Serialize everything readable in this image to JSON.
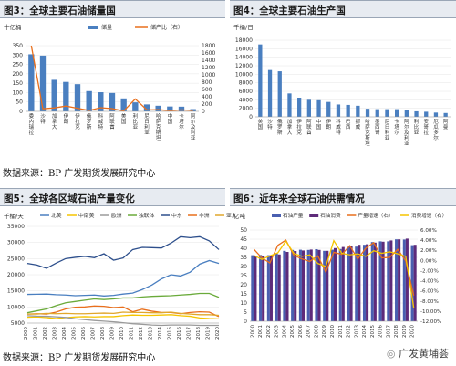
{
  "fig3": {
    "header": "图3：全球主要石油储量国",
    "unit": "十亿桶",
    "legend": [
      "储量",
      "储产比（右）"
    ],
    "chart_data": {
      "type": "bar",
      "title": "全球主要石油储量国",
      "categories": [
        "委内瑞拉",
        "沙特",
        "加拿大",
        "伊朗",
        "伊拉克",
        "俄罗斯",
        "科威特",
        "阿联酋",
        "美国",
        "利比亚",
        "尼日利亚",
        "哈萨克斯坦",
        "中国",
        "卡塔尔",
        "阿尔及利亚"
      ],
      "series": [
        {
          "name": "储量",
          "axis": "left",
          "values": [
            304,
            297,
            168,
            157,
            145,
            108,
            102,
            98,
            69,
            48,
            37,
            30,
            26,
            25,
            12
          ]
        },
        {
          "name": "储产比（右）",
          "axis": "right",
          "values": [
            1800,
            70,
            95,
            145,
            85,
            25,
            100,
            75,
            10,
            340,
            40,
            45,
            20,
            40,
            25
          ]
        }
      ],
      "ylim": [
        0,
        350
      ],
      "yticks": [
        0,
        50,
        100,
        150,
        200,
        250,
        300,
        350
      ],
      "y2lim": [
        0,
        1800
      ],
      "y2ticks": [
        0,
        200,
        400,
        600,
        800,
        1000,
        1200,
        1400,
        1600,
        1800
      ]
    }
  },
  "fig4": {
    "header": "图4：全球主要石油生产国",
    "unit": "千桶/日",
    "chart_data": {
      "type": "bar",
      "title": "全球主要石油生产国",
      "categories": [
        "美国",
        "沙特",
        "俄罗斯",
        "加拿大",
        "伊拉克",
        "阿联酋",
        "中国",
        "伊朗",
        "科威特",
        "巴西",
        "挪威",
        "哈萨克斯坦",
        "墨西哥",
        "尼日利亚",
        "卡塔尔",
        "阿尔及利亚",
        "利比亚",
        "安哥拉",
        "厄瓜多尔",
        "阿曼"
      ],
      "series": [
        {
          "name": "产量",
          "values": [
            17000,
            11000,
            10700,
            5500,
            4500,
            4000,
            3900,
            3500,
            2900,
            2800,
            2600,
            1900,
            1800,
            1800,
            1800,
            1500,
            1300,
            1200,
            1000,
            900
          ]
        }
      ],
      "ylim": [
        0,
        18000
      ],
      "yticks": [
        0,
        2000,
        4000,
        6000,
        8000,
        10000,
        12000,
        14000,
        16000,
        18000
      ]
    }
  },
  "fig5": {
    "header": "图5：全球各区域石油产量变化",
    "unit": "千桶/天",
    "chart_data": {
      "type": "line",
      "title": "全球各区域石油产量变化",
      "x": [
        "2000",
        "2001",
        "2002",
        "2003",
        "2004",
        "2005",
        "2006",
        "2007",
        "2008",
        "2009",
        "2010",
        "2011",
        "2012",
        "2013",
        "2014",
        "2015",
        "2016",
        "2017",
        "2018",
        "2019",
        "2020"
      ],
      "series": [
        {
          "name": "北美",
          "color": "#4a7fc0",
          "values": [
            13900,
            13950,
            14000,
            13800,
            13700,
            13500,
            13600,
            13700,
            13400,
            13600,
            14000,
            14300,
            15400,
            16800,
            18700,
            20000,
            19600,
            20800,
            23300,
            24400,
            23500
          ]
        },
        {
          "name": "中南美",
          "color": "#f5c400",
          "values": [
            6800,
            6900,
            6700,
            6400,
            6700,
            6900,
            7000,
            6900,
            7000,
            7000,
            7300,
            7500,
            7400,
            7400,
            7500,
            7600,
            7300,
            7100,
            6600,
            6400,
            6300
          ]
        },
        {
          "name": "欧洲",
          "color": "#9a9a9a",
          "values": [
            7300,
            7150,
            7100,
            6950,
            6750,
            6350,
            6050,
            5800,
            5600,
            5400,
            5100,
            4800,
            4600,
            4400,
            4300,
            4400,
            4400,
            4400,
            4300,
            4300,
            4300
          ]
        },
        {
          "name": "独联体",
          "color": "#6aaa3a",
          "values": [
            8200,
            8800,
            9400,
            10400,
            11300,
            11700,
            12100,
            12500,
            12300,
            12500,
            12800,
            12800,
            13100,
            13300,
            13400,
            13500,
            13700,
            13900,
            14200,
            14200,
            13000
          ]
        },
        {
          "name": "中东",
          "color": "#2d4f8c",
          "values": [
            23500,
            23000,
            22000,
            23600,
            25000,
            25400,
            25700,
            25300,
            26500,
            24500,
            25200,
            27800,
            28500,
            28400,
            28300,
            29800,
            31800,
            31500,
            31800,
            30500,
            27800
          ]
        },
        {
          "name": "非洲",
          "color": "#e96f1c",
          "values": [
            7800,
            7900,
            7800,
            8400,
            9400,
            9900,
            10000,
            10300,
            10200,
            9800,
            10000,
            8500,
            9300,
            8700,
            8300,
            8300,
            7900,
            8300,
            8500,
            8400,
            7000
          ]
        },
        {
          "name": "亚太",
          "color": "#e1a72c",
          "values": [
            7800,
            7800,
            8000,
            7900,
            8000,
            7900,
            7900,
            8000,
            8100,
            8000,
            8400,
            8300,
            8300,
            8200,
            8200,
            8400,
            8000,
            7800,
            7600,
            7600,
            7400
          ]
        }
      ],
      "ylim": [
        5000,
        35000
      ],
      "yticks": [
        5000,
        10000,
        15000,
        20000,
        25000,
        30000,
        35000
      ]
    }
  },
  "fig6": {
    "header": "图6：近年来全球石油供需情况",
    "unit": "亿吨",
    "chart_data": {
      "type": "bar",
      "title": "近年来全球石油供需情况",
      "x": [
        "2000",
        "2001",
        "2002",
        "2003",
        "2004",
        "2005",
        "2006",
        "2007",
        "2008",
        "2009",
        "2010",
        "2011",
        "2012",
        "2013",
        "2014",
        "2015",
        "2016",
        "2017",
        "2018",
        "2019",
        "2020"
      ],
      "series": [
        {
          "name": "石油产量",
          "type": "bar",
          "axis": "left",
          "color": "#4a5fb0",
          "values": [
            36.2,
            36.3,
            36.2,
            37.2,
            38.6,
            39.1,
            39.2,
            39.1,
            39.5,
            38.6,
            39.2,
            39.6,
            40.8,
            40.9,
            41.9,
            43.4,
            43.8,
            43.8,
            44.9,
            44.8,
            41.7
          ]
        },
        {
          "name": "石油消费",
          "type": "bar",
          "axis": "left",
          "color": "#5e2b7a",
          "values": [
            35.7,
            35.8,
            36.1,
            36.6,
            38.0,
            38.5,
            38.8,
            39.3,
            39.1,
            38.6,
            40.1,
            40.7,
            41.4,
            41.9,
            42.2,
            43.1,
            43.6,
            44.3,
            44.9,
            45.3,
            41.9
          ]
        },
        {
          "name": "产量增速（右）",
          "type": "line",
          "axis": "right",
          "color": "#e96f1c",
          "values": [
            2.2,
            0.5,
            -0.5,
            3.0,
            4.0,
            1.0,
            0.3,
            -0.2,
            0.9,
            -2.3,
            1.6,
            1.2,
            2.9,
            0.3,
            2.4,
            3.5,
            0.5,
            0.6,
            2.2,
            -0.1,
            -6.9
          ]
        },
        {
          "name": "消费增速（右）",
          "type": "line",
          "axis": "right",
          "color": "#f5c400",
          "values": [
            1.0,
            0.2,
            0.9,
            1.5,
            3.8,
            1.4,
            0.8,
            1.1,
            -0.6,
            -1.2,
            3.9,
            1.4,
            1.1,
            1.3,
            0.8,
            1.9,
            1.4,
            1.7,
            1.3,
            0.8,
            -9.3
          ]
        }
      ],
      "ylim": [
        0,
        50
      ],
      "yticks": [
        0,
        5,
        10,
        15,
        20,
        25,
        30,
        35,
        40,
        45,
        50
      ],
      "y2lim": [
        -12,
        6
      ],
      "y2ticks": [
        "6.00%",
        "4.00%",
        "2.00%",
        "0.00%",
        "-2.00%",
        "-4.00%",
        "-6.00%",
        "-8.00%",
        "-10.00%",
        "-12.00%"
      ]
    }
  },
  "source1": "数据来源：BP 广发期货发展研究中心",
  "source2": "数据来源：BP 广发期货发展研究中心",
  "watermark": "广发黄埔荟"
}
